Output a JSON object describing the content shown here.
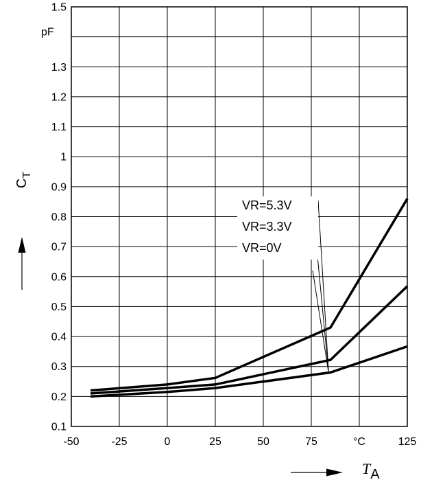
{
  "chart_data": {
    "type": "line",
    "title": "",
    "x_tick_labels": [
      "-50",
      "-25",
      "0",
      "25",
      "50",
      "75",
      "125"
    ],
    "x_unit_label": "°C",
    "y_tick_labels": [
      "0.1",
      "0.2",
      "0.3",
      "0.4",
      "0.5",
      "0.6",
      "0.7",
      "0.8",
      "0.9",
      "1",
      "1.1",
      "1.2",
      "1.3",
      "1.5"
    ],
    "y_unit_label": "pF",
    "xlim": [
      -50,
      125
    ],
    "ylim": [
      0.1,
      1.5
    ],
    "x_grid": [
      -50,
      -25,
      0,
      25,
      50,
      75,
      100,
      125
    ],
    "y_grid": [
      0.1,
      0.2,
      0.3,
      0.4,
      0.5,
      0.6,
      0.7,
      0.8,
      0.9,
      1.0,
      1.1,
      1.2,
      1.3,
      1.4,
      1.5
    ],
    "grid": true,
    "xlabel": {
      "symbol": "T",
      "subscript": "A"
    },
    "ylabel": {
      "symbol": "C",
      "subscript": "T"
    },
    "series": [
      {
        "name": "VR=5.3V",
        "x": [
          -40,
          0,
          25,
          85,
          125
        ],
        "y": [
          0.22,
          0.24,
          0.262,
          0.43,
          0.86
        ]
      },
      {
        "name": "VR=3.3V",
        "x": [
          -40,
          0,
          25,
          85,
          125
        ],
        "y": [
          0.21,
          0.228,
          0.24,
          0.322,
          0.568
        ]
      },
      {
        "name": "VR=0V",
        "x": [
          -40,
          0,
          25,
          85,
          125
        ],
        "y": [
          0.2,
          0.215,
          0.228,
          0.28,
          0.367
        ]
      }
    ]
  }
}
